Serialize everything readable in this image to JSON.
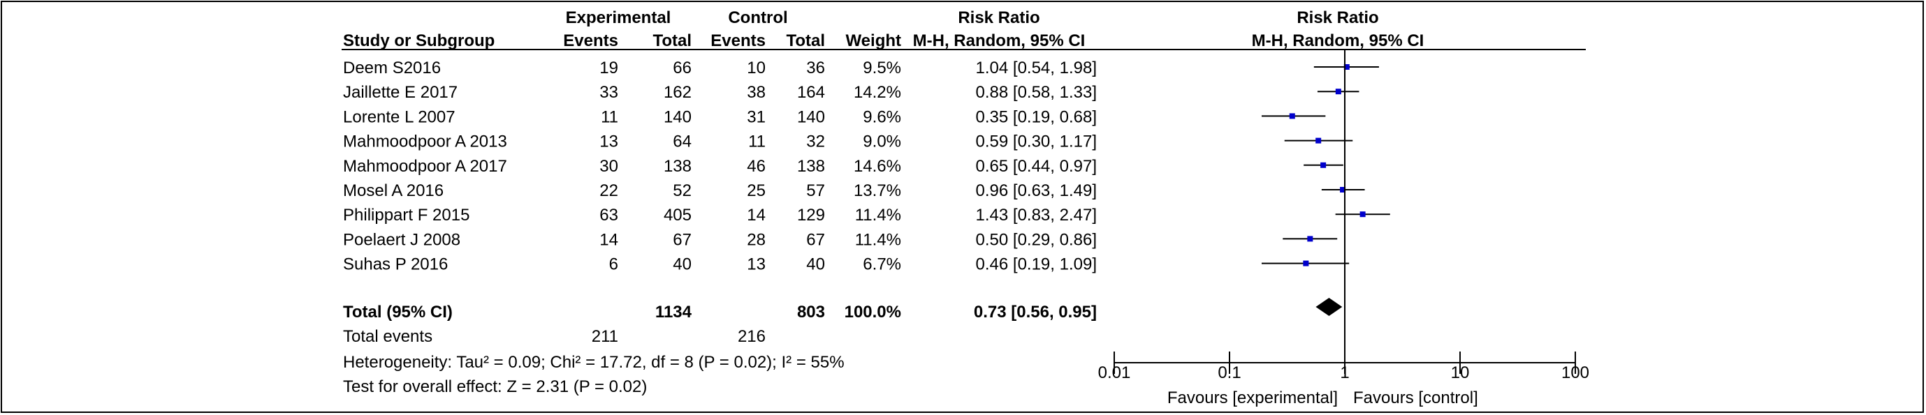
{
  "chart_data": {
    "type": "forest",
    "headers": {
      "experimental_group": "Experimental",
      "control_group": "Control",
      "study_col": "Study or Subgroup",
      "events": "Events",
      "total": "Total",
      "weight": "Weight",
      "rr_title": "Risk Ratio",
      "rr_method": "M-H, Random, 95% CI"
    },
    "studies": [
      {
        "name": "Deem S2016",
        "exp_events": "19",
        "exp_total": "66",
        "ctrl_events": "10",
        "ctrl_total": "36",
        "weight": "9.5%",
        "ci_text": "1.04 [0.54, 1.98]",
        "rr": 1.04,
        "lower": 0.54,
        "upper": 1.98
      },
      {
        "name": "Jaillette E 2017",
        "exp_events": "33",
        "exp_total": "162",
        "ctrl_events": "38",
        "ctrl_total": "164",
        "weight": "14.2%",
        "ci_text": "0.88 [0.58, 1.33]",
        "rr": 0.88,
        "lower": 0.58,
        "upper": 1.33
      },
      {
        "name": "Lorente L 2007",
        "exp_events": "11",
        "exp_total": "140",
        "ctrl_events": "31",
        "ctrl_total": "140",
        "weight": "9.6%",
        "ci_text": "0.35 [0.19, 0.68]",
        "rr": 0.35,
        "lower": 0.19,
        "upper": 0.68
      },
      {
        "name": "Mahmoodpoor A 2013",
        "exp_events": "13",
        "exp_total": "64",
        "ctrl_events": "11",
        "ctrl_total": "32",
        "weight": "9.0%",
        "ci_text": "0.59 [0.30, 1.17]",
        "rr": 0.59,
        "lower": 0.3,
        "upper": 1.17
      },
      {
        "name": "Mahmoodpoor A 2017",
        "exp_events": "30",
        "exp_total": "138",
        "ctrl_events": "46",
        "ctrl_total": "138",
        "weight": "14.6%",
        "ci_text": "0.65 [0.44, 0.97]",
        "rr": 0.65,
        "lower": 0.44,
        "upper": 0.97
      },
      {
        "name": "Mosel A 2016",
        "exp_events": "22",
        "exp_total": "52",
        "ctrl_events": "25",
        "ctrl_total": "57",
        "weight": "13.7%",
        "ci_text": "0.96 [0.63, 1.49]",
        "rr": 0.96,
        "lower": 0.63,
        "upper": 1.49
      },
      {
        "name": "Philippart F 2015",
        "exp_events": "63",
        "exp_total": "405",
        "ctrl_events": "14",
        "ctrl_total": "129",
        "weight": "11.4%",
        "ci_text": "1.43 [0.83, 2.47]",
        "rr": 1.43,
        "lower": 0.83,
        "upper": 2.47
      },
      {
        "name": "Poelaert J 2008",
        "exp_events": "14",
        "exp_total": "67",
        "ctrl_events": "28",
        "ctrl_total": "67",
        "weight": "11.4%",
        "ci_text": "0.50 [0.29, 0.86]",
        "rr": 0.5,
        "lower": 0.29,
        "upper": 0.86
      },
      {
        "name": "Suhas P 2016",
        "exp_events": "6",
        "exp_total": "40",
        "ctrl_events": "13",
        "ctrl_total": "40",
        "weight": "6.7%",
        "ci_text": "0.46 [0.19, 1.09]",
        "rr": 0.46,
        "lower": 0.19,
        "upper": 1.09
      }
    ],
    "total": {
      "label": "Total (95% CI)",
      "exp_total": "1134",
      "ctrl_total": "803",
      "weight": "100.0%",
      "ci_text": "0.73 [0.56, 0.95]",
      "rr": 0.73,
      "lower": 0.56,
      "upper": 0.95
    },
    "total_events": {
      "label": "Total events",
      "exp": "211",
      "ctrl": "216"
    },
    "heterogeneity": "Heterogeneity: Tau² = 0.09; Chi² = 17.72, df = 8 (P = 0.02); I² = 55%",
    "overall_effect": "Test for overall effect: Z = 2.31 (P = 0.02)",
    "x_scale": "log",
    "xlim": [
      0.01,
      100
    ],
    "x_ticks": [
      0.01,
      0.1,
      1,
      10,
      100
    ],
    "x_tick_labels": [
      "0.01",
      "0.1",
      "1",
      "10",
      "100"
    ],
    "favours_left": "Favours [experimental]",
    "favours_right": "Favours [control]",
    "colors": {
      "marker": "#0000cc",
      "line": "#000000"
    }
  }
}
